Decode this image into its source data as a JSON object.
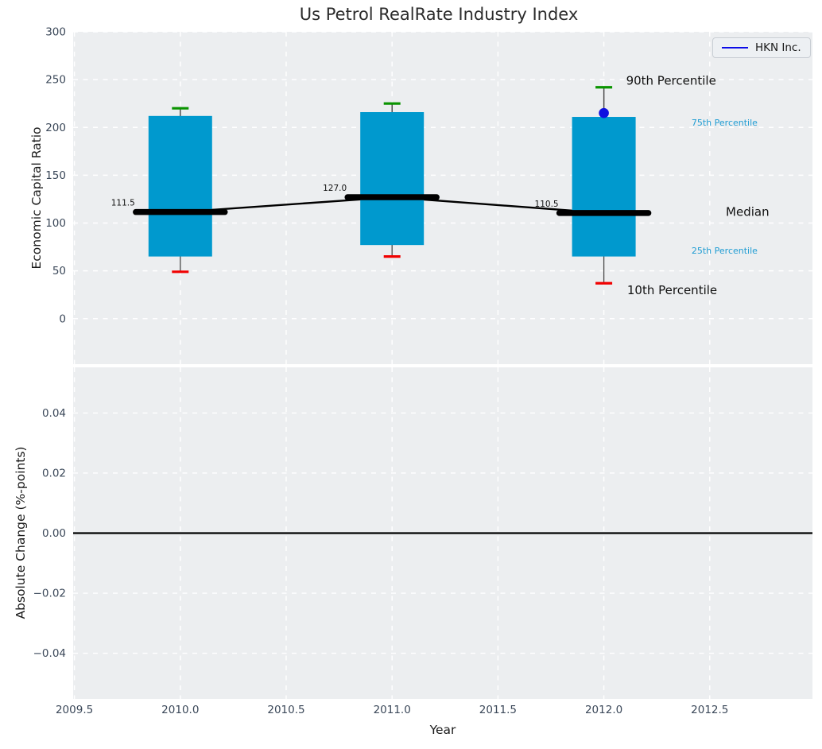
{
  "chart_data": {
    "type": "boxplot",
    "title": "Us Petrol RealRate Industry Index",
    "xlabel": "Year",
    "legend": {
      "label": "HKN Inc.",
      "line_color": "#0c0ce8",
      "position": "top-right"
    },
    "x_axis": {
      "xlim": [
        2009.494,
        2012.985
      ],
      "tick_values": [
        2009.5,
        2010.0,
        2010.5,
        2011.0,
        2011.5,
        2012.0,
        2012.5
      ],
      "tick_labels": [
        "2009.5",
        "2010.0",
        "2010.5",
        "2011.0",
        "2011.5",
        "2012.0",
        "2012.5"
      ]
    },
    "top_panel": {
      "ylabel": "Economic Capital Ratio",
      "ylim": [
        -47.6,
        300
      ],
      "tick_values": [
        0,
        50,
        100,
        150,
        200,
        250,
        300
      ],
      "tick_labels": [
        "0",
        "50",
        "100",
        "150",
        "200",
        "250",
        "300"
      ],
      "grid": true,
      "boxes": [
        {
          "year": 2010,
          "p10": 49,
          "p25": 65,
          "median": 111.5,
          "p75": 212,
          "p90": 220,
          "median_label": "111.5"
        },
        {
          "year": 2011,
          "p10": 65,
          "p25": 77,
          "median": 127.0,
          "p75": 216,
          "p90": 225,
          "median_label": "127.0"
        },
        {
          "year": 2012,
          "p10": 37,
          "p25": 65,
          "median": 110.5,
          "p75": 211,
          "p90": 242,
          "median_label": "110.5"
        }
      ],
      "company_point": {
        "name": "HKN Inc.",
        "year": 2012,
        "value": 215
      },
      "annotations": [
        {
          "text": "90th Percentile",
          "x_year": 2012.105,
          "y_value": 249,
          "color": "#111111",
          "size": 15
        },
        {
          "text": "75th Percentile",
          "x_year": 2012.414,
          "y_value": 205,
          "color": "#1e9cd3",
          "size": 11
        },
        {
          "text": "Median",
          "x_year": 2012.576,
          "y_value": 112,
          "color": "#111111",
          "size": 15
        },
        {
          "text": "25th Percentile",
          "x_year": 2012.414,
          "y_value": 71,
          "color": "#1e9cd3",
          "size": 11
        },
        {
          "text": "10th Percentile",
          "x_year": 2012.11,
          "y_value": 30,
          "color": "#111111",
          "size": 15
        }
      ]
    },
    "bottom_panel": {
      "ylabel": "Absolute Change (%-points)",
      "ylim": [
        -0.0552,
        0.0552
      ],
      "tick_values": [
        0.04,
        0.02,
        0.0,
        -0.02,
        -0.04
      ],
      "tick_labels": [
        "0.04",
        "0.02",
        "0.00",
        "−0.02",
        "−0.04"
      ],
      "grid": true,
      "zero_line": 0.0,
      "series": []
    },
    "colors": {
      "panel_bg": "#eceef0",
      "grid": "#ffffff",
      "box_fill": "#0099ce",
      "cap_top": "#0a9400",
      "cap_bottom": "#f00000",
      "whisker": "#4a4a4a",
      "median_line": "#000000",
      "company_point": "#0f0fe0",
      "tick_text": "#3b4859",
      "cyan_text": "#1e9cd3"
    }
  }
}
